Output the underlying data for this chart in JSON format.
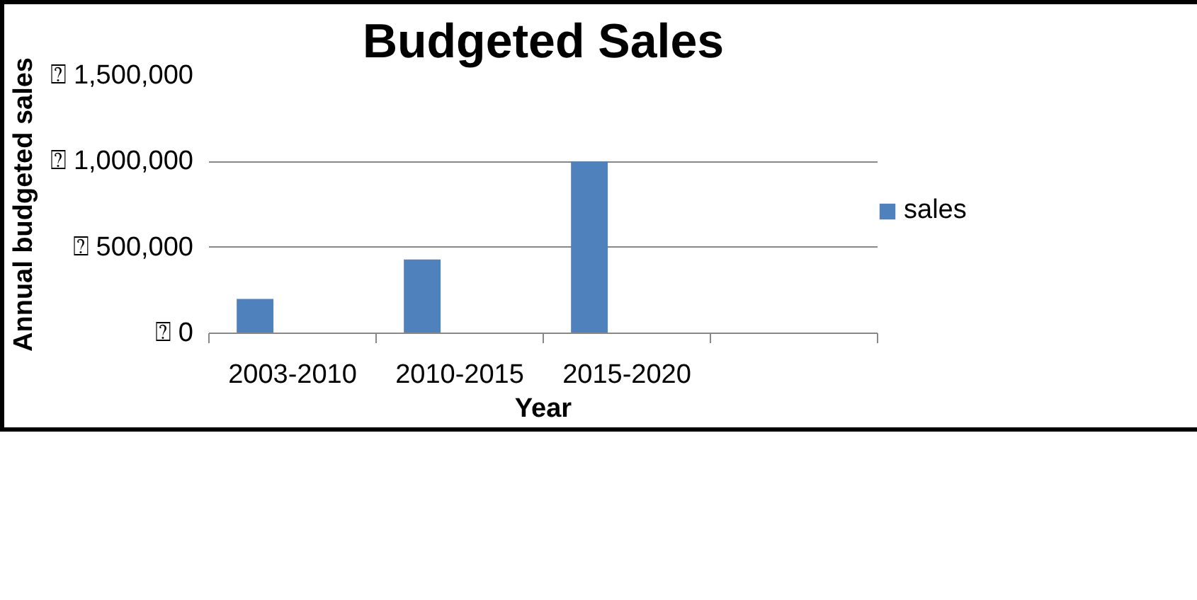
{
  "chart_data": {
    "type": "bar",
    "title": "Budgeted Sales",
    "xlabel": "Year",
    "ylabel": "Annual budgeted sales",
    "categories": [
      "2003-2010",
      "2010-2015",
      "2015-2020",
      null
    ],
    "series": [
      {
        "name": "sales",
        "color": "#4f81bd",
        "values": [
          200000,
          430000,
          1000000,
          null
        ]
      }
    ],
    "ylim": [
      0,
      1500000
    ],
    "yticks": [
      {
        "value": 0,
        "label": "⍰ 0"
      },
      {
        "value": 500000,
        "label": "⍰ 500,000"
      },
      {
        "value": 1000000,
        "label": "⍰ 1,000,000"
      },
      {
        "value": 1500000,
        "label": "⍰ 1,500,000"
      }
    ],
    "grid": "y",
    "legend": "right"
  }
}
